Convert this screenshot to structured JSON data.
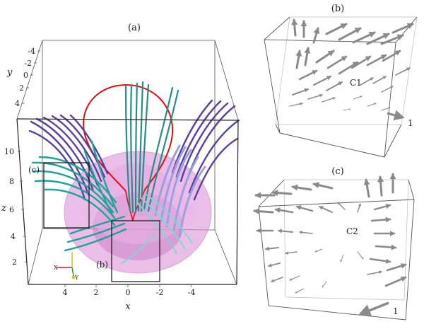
{
  "panel_a": {
    "label": "(a)",
    "axis_x": {
      "name": "x",
      "ticks": [
        "4",
        "2",
        "0",
        "-2",
        "-4"
      ]
    },
    "axis_y": {
      "name": "y",
      "ticks": [
        "-4",
        "-2",
        "0",
        "2",
        "4"
      ]
    },
    "axis_z": {
      "name": "z",
      "ticks": [
        "10",
        "8",
        "6",
        "4",
        "2"
      ]
    },
    "inset_c_label": "(c)",
    "inset_b_label": "(b)",
    "triad": {
      "x": "X",
      "y": "Y"
    },
    "colors": {
      "loop": "#e01010",
      "surface": "#d98ad6",
      "teal": "#1fa39a",
      "purple": "#5a3f9e",
      "lavender": "#9aa0e0"
    }
  },
  "panel_b": {
    "label": "(b)",
    "null_label": "C1",
    "scale_label": "1"
  },
  "panel_c": {
    "label": "(c)",
    "null_label": "C2",
    "scale_label": "1"
  }
}
